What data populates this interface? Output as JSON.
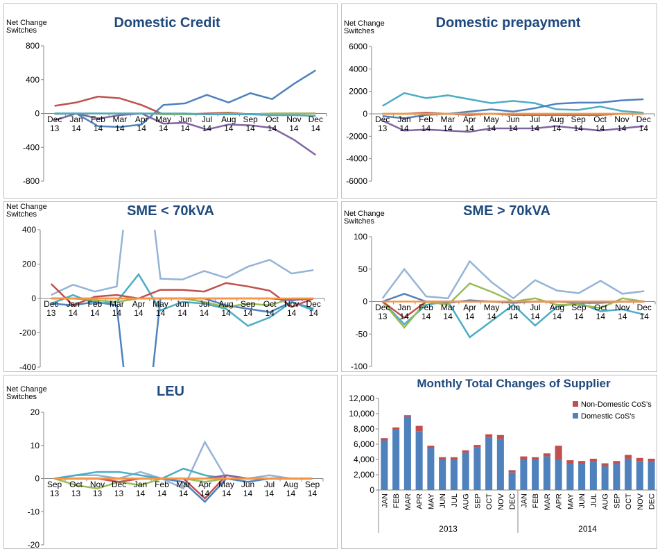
{
  "chart_data": [
    {
      "type": "line",
      "title": "Domestic Credit",
      "y_label": "Net Change Switches",
      "categories": [
        "Dec 13",
        "Jan 14",
        "Feb 14",
        "Mar 14",
        "Apr 14",
        "May 14",
        "Jun 14",
        "Jul 14",
        "Aug 14",
        "Sep 14",
        "Oct 14",
        "Nov 14",
        "Dec 14"
      ],
      "ylim": [
        -800,
        800
      ],
      "yticks": [
        -800,
        -400,
        0,
        400,
        800
      ],
      "grid": false,
      "series": [
        {
          "color": "#4f81bd",
          "values": [
            -5,
            0,
            -150,
            -160,
            -130,
            100,
            120,
            220,
            130,
            240,
            170,
            350,
            510
          ]
        },
        {
          "color": "#c0504d",
          "values": [
            90,
            130,
            200,
            180,
            100,
            -10,
            -10,
            0,
            10,
            -10,
            0,
            0,
            0
          ]
        },
        {
          "color": "#9bbb59",
          "values": [
            0,
            0,
            0,
            0,
            0,
            -10,
            -10,
            -10,
            0,
            -10,
            0,
            0,
            0
          ]
        },
        {
          "color": "#8064a2",
          "values": [
            -80,
            0,
            -60,
            -20,
            0,
            -120,
            -110,
            -190,
            -130,
            -140,
            -170,
            -310,
            -490
          ]
        },
        {
          "color": "#4bacc6",
          "values": [
            0,
            0,
            0,
            0,
            0,
            0,
            0,
            -10,
            -10,
            -10,
            -20,
            -20,
            -30
          ]
        }
      ]
    },
    {
      "type": "line",
      "title": "Domestic prepayment",
      "y_label": "Net Change Switches",
      "categories": [
        "Dec 13",
        "Jan 14",
        "Feb 14",
        "Mar 14",
        "Apr 14",
        "May 14",
        "Jun 14",
        "Jul 14",
        "Aug 14",
        "Sep 14",
        "Oct 14",
        "Nov 14",
        "Dec 14"
      ],
      "ylim": [
        -6000,
        6000
      ],
      "yticks": [
        -6000,
        -4000,
        -2000,
        0,
        2000,
        4000,
        6000
      ],
      "grid": false,
      "series": [
        {
          "color": "#4bacc6",
          "values": [
            700,
            1850,
            1400,
            1650,
            1300,
            950,
            1150,
            950,
            400,
            350,
            650,
            250,
            100
          ]
        },
        {
          "color": "#4f81bd",
          "values": [
            -200,
            -400,
            -100,
            0,
            200,
            400,
            200,
            500,
            900,
            1000,
            1000,
            1200,
            1300
          ]
        },
        {
          "color": "#8064a2",
          "values": [
            -600,
            -1500,
            -1400,
            -1500,
            -1600,
            -1300,
            -1300,
            -1300,
            -1100,
            -1300,
            -1500,
            -1300,
            -1100
          ]
        },
        {
          "color": "#c0504d",
          "values": [
            0,
            0,
            100,
            0,
            -100,
            0,
            -100,
            -100,
            -100,
            -100,
            -100,
            0,
            0
          ]
        },
        {
          "color": "#9bbb59",
          "values": [
            0,
            0,
            0,
            0,
            0,
            0,
            0,
            0,
            0,
            0,
            0,
            0,
            0
          ]
        },
        {
          "color": "#f79646",
          "values": [
            0,
            0,
            0,
            0,
            0,
            0,
            0,
            0,
            0,
            0,
            0,
            0,
            0
          ]
        }
      ]
    },
    {
      "type": "line",
      "title": "SME < 70kVA",
      "y_label": "Net Change Switches",
      "categories": [
        "Dec 13",
        "Jan 14",
        "Feb 14",
        "Mar 14",
        "Apr 14",
        "May 14",
        "Jun 14",
        "Jul 14",
        "Aug 14",
        "Sep 14",
        "Oct 14",
        "Nov 14",
        "Dec 14"
      ],
      "ylim": [
        -400,
        400
      ],
      "yticks": [
        -400,
        -200,
        0,
        200,
        400
      ],
      "grid": false,
      "series": [
        {
          "color": "#95b3d7",
          "values": [
            20,
            80,
            40,
            70,
            1200,
            115,
            110,
            160,
            120,
            185,
            225,
            145,
            165
          ]
        },
        {
          "color": "#4f81bd",
          "values": [
            -30,
            -40,
            -20,
            -40,
            -1200,
            0,
            0,
            0,
            -40,
            -60,
            -80,
            -20,
            -60
          ]
        },
        {
          "color": "#4bacc6",
          "values": [
            -30,
            20,
            -30,
            -20,
            140,
            -70,
            -20,
            -30,
            -60,
            -160,
            -110,
            -20,
            -70
          ]
        },
        {
          "color": "#c0504d",
          "values": [
            85,
            -40,
            10,
            20,
            0,
            50,
            50,
            40,
            90,
            70,
            45,
            -50,
            0
          ]
        },
        {
          "color": "#9bbb59",
          "values": [
            0,
            0,
            -10,
            -20,
            0,
            0,
            0,
            -20,
            -50,
            -30,
            -40,
            0,
            0
          ]
        },
        {
          "color": "#8064a2",
          "values": [
            0,
            0,
            0,
            0,
            0,
            0,
            0,
            0,
            0,
            0,
            0,
            -10,
            0
          ]
        },
        {
          "color": "#f79646",
          "values": [
            0,
            0,
            0,
            0,
            0,
            0,
            0,
            0,
            0,
            0,
            0,
            0,
            0
          ]
        }
      ]
    },
    {
      "type": "line",
      "title": "SME > 70kVA",
      "y_label": "Net Change Switches",
      "categories": [
        "Dec 13",
        "Jan 14",
        "Feb 14",
        "Mar 14",
        "Apr 14",
        "May 14",
        "Jun 14",
        "Jul 14",
        "Aug 14",
        "Sep 14",
        "Oct 14",
        "Nov 14",
        "Dec 14"
      ],
      "ylim": [
        -100,
        100
      ],
      "yticks": [
        -100,
        -50,
        0,
        50,
        100
      ],
      "grid": false,
      "series": [
        {
          "color": "#95b3d7",
          "values": [
            5,
            50,
            8,
            5,
            62,
            30,
            5,
            33,
            17,
            13,
            32,
            12,
            16
          ]
        },
        {
          "color": "#4f81bd",
          "values": [
            0,
            12,
            0,
            -2,
            2,
            0,
            -2,
            0,
            0,
            -2,
            -2,
            0,
            0
          ]
        },
        {
          "color": "#4bacc6",
          "values": [
            0,
            -35,
            -5,
            0,
            -55,
            -30,
            -5,
            -37,
            -8,
            -2,
            -15,
            -12,
            -20
          ]
        },
        {
          "color": "#9bbb59",
          "values": [
            0,
            -40,
            0,
            -5,
            28,
            15,
            0,
            5,
            -5,
            -5,
            -10,
            5,
            0
          ]
        },
        {
          "color": "#c0504d",
          "values": [
            0,
            -25,
            0,
            0,
            0,
            0,
            0,
            0,
            0,
            0,
            0,
            0,
            0
          ]
        },
        {
          "color": "#f79646",
          "values": [
            0,
            0,
            0,
            0,
            0,
            0,
            0,
            0,
            0,
            0,
            0,
            0,
            0
          ]
        }
      ]
    },
    {
      "type": "line",
      "title": "LEU",
      "y_label": "Net Change Switches",
      "categories": [
        "Sep 13",
        "Oct 13",
        "Nov 13",
        "Dec 13",
        "Jan 14",
        "Feb 14",
        "Mar 14",
        "Apr 14",
        "May 14",
        "Jun 14",
        "Jul 14",
        "Aug 14",
        "Sep 14"
      ],
      "ylim": [
        -20,
        20
      ],
      "yticks": [
        -20,
        -10,
        0,
        10,
        20
      ],
      "grid": false,
      "series": [
        {
          "color": "#95b3d7",
          "values": [
            0,
            1,
            1,
            0,
            2,
            0,
            -3,
            11,
            0,
            0,
            1,
            0,
            0
          ]
        },
        {
          "color": "#4bacc6",
          "values": [
            0,
            1,
            2,
            2,
            1,
            0,
            3,
            1,
            0,
            0,
            0,
            0,
            0
          ]
        },
        {
          "color": "#9bbb59",
          "values": [
            0,
            -2,
            -3,
            -1,
            -2,
            0,
            0,
            -1,
            0,
            0,
            0,
            0,
            0
          ]
        },
        {
          "color": "#4f81bd",
          "values": [
            0,
            0,
            0,
            0,
            0,
            0,
            -1,
            -7,
            0,
            -1,
            0,
            0,
            0
          ]
        },
        {
          "color": "#c0504d",
          "values": [
            0,
            0,
            0,
            -1,
            0,
            0,
            0,
            -6,
            1,
            0,
            0,
            0,
            0
          ]
        },
        {
          "color": "#8064a2",
          "values": [
            0,
            0,
            0,
            0,
            0,
            0,
            0,
            0,
            1,
            0,
            0,
            0,
            0
          ]
        },
        {
          "color": "#f79646",
          "values": [
            0,
            0,
            0,
            0,
            0,
            0,
            0,
            0,
            0,
            0,
            0,
            0,
            0
          ]
        }
      ]
    },
    {
      "type": "stacked_bar",
      "title": "Monthly Total Changes of Supplier",
      "categories": [
        "JAN",
        "FEB",
        "MAR",
        "APR",
        "MAY",
        "JUN",
        "JUL",
        "AUG",
        "SEP",
        "OCT",
        "NOV",
        "DEC",
        "JAN",
        "FEB",
        "MAR",
        "APR",
        "MAY",
        "JUN",
        "JUL",
        "AUG",
        "SEP",
        "OCT",
        "NOV",
        "DEC"
      ],
      "groups": [
        "2013",
        "2014"
      ],
      "ylim": [
        0,
        12000
      ],
      "yticks": [
        0,
        {
          "value": 2000,
          "label": "2,000"
        },
        {
          "value": 4000,
          "label": "4,000"
        },
        {
          "value": 6000,
          "label": "6,000"
        },
        {
          "value": 8000,
          "label": "8,000"
        },
        {
          "value": 10000,
          "label": "10,000"
        },
        {
          "value": 12000,
          "label": "12,000"
        }
      ],
      "grid": false,
      "legend": "top-right",
      "series": [
        {
          "name": "Domestic CoS's",
          "color": "#4f81bd",
          "values": [
            6500,
            7900,
            9600,
            7700,
            5500,
            4000,
            4000,
            4900,
            5600,
            6900,
            6700,
            2300,
            4000,
            4000,
            4400,
            4000,
            3500,
            3500,
            3700,
            3100,
            3400,
            4100,
            3800,
            3700
          ]
        },
        {
          "name": "Non-Domestic CoS's",
          "color": "#c0504d",
          "values": [
            300,
            300,
            200,
            700,
            300,
            300,
            300,
            300,
            300,
            400,
            500,
            300,
            400,
            300,
            400,
            1800,
            400,
            300,
            400,
            400,
            400,
            500,
            400,
            400
          ]
        }
      ]
    }
  ]
}
